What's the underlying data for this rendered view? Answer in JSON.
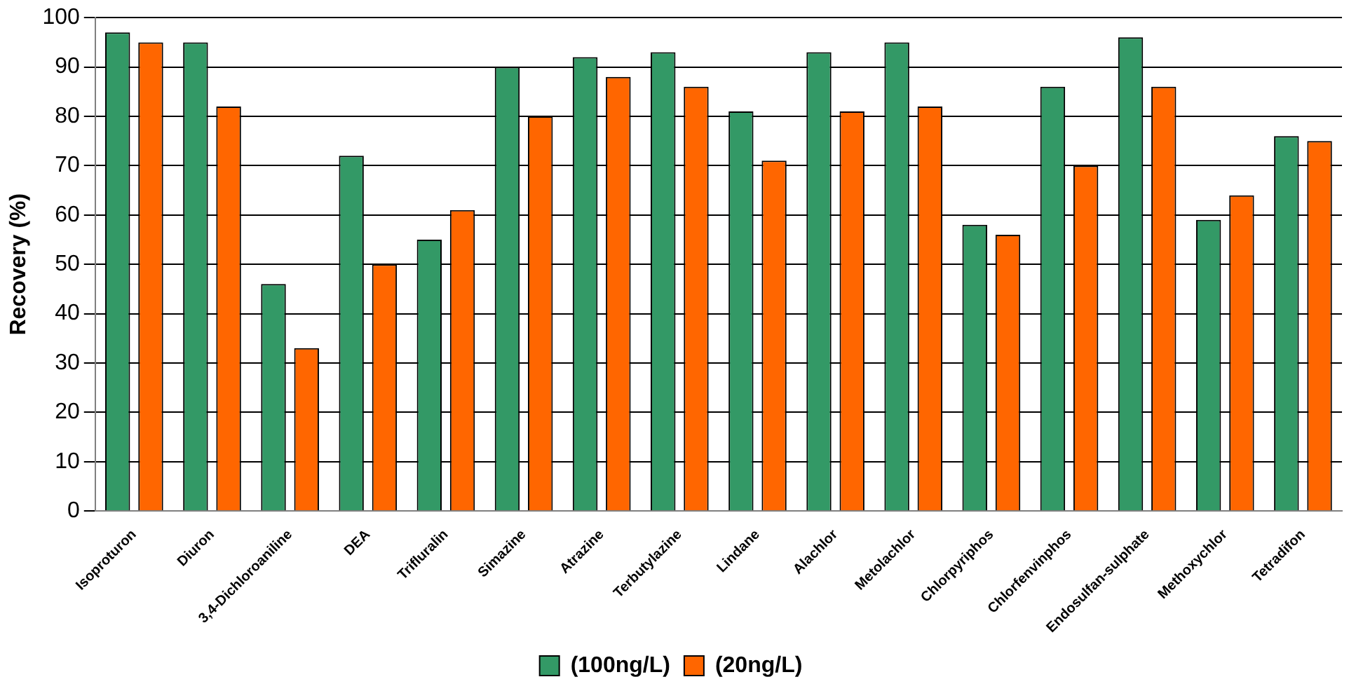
{
  "chart_data": {
    "type": "bar",
    "ylabel": "Recovery (%)",
    "categories": [
      "Isoproturon",
      "Diuron",
      "3,4-Dichloroaniline",
      "DEA",
      "Trifluralin",
      "Simazine",
      "Atrazine",
      "Terbutylazine",
      "Lindane",
      "Alachlor",
      "Metolachlor",
      "Chlorpyriphos",
      "Chlorfenvinphos",
      "Endosulfan-sulphate",
      "Methoxychlor",
      "Tetradifon"
    ],
    "series": [
      {
        "name": "(100ng/L)",
        "color": "#339966",
        "values": [
          97,
          95,
          46,
          72,
          55,
          90,
          92,
          93,
          81,
          93,
          95,
          58,
          86,
          96,
          59,
          76
        ]
      },
      {
        "name": "(20ng/L)",
        "color": "#ff6600",
        "values": [
          95,
          82,
          33,
          50,
          61,
          80,
          88,
          86,
          71,
          81,
          82,
          56,
          70,
          86,
          64,
          75
        ]
      }
    ],
    "ylim": [
      0,
      100
    ],
    "yticks": [
      0,
      10,
      20,
      30,
      40,
      50,
      60,
      70,
      80,
      90,
      100
    ],
    "grid": "y",
    "legend": "bottom"
  }
}
